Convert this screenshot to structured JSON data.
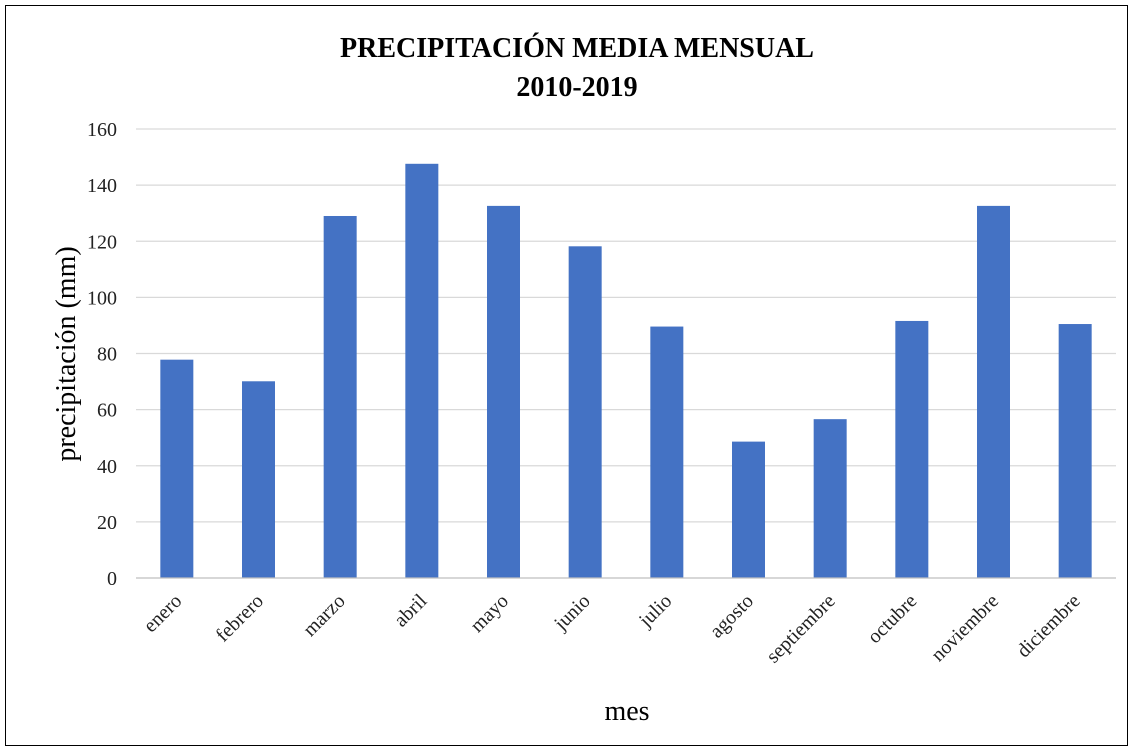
{
  "chart_data": {
    "type": "bar",
    "title": "PRECIPITACIÓN  MEDIA MENSUAL",
    "subtitle": "2010-2019",
    "xlabel": "mes",
    "ylabel": "precipitación  (mm)",
    "ylim": [
      0,
      160
    ],
    "yticks": [
      "0",
      "20",
      "40",
      "60",
      "80",
      "100",
      "120",
      "140",
      "160"
    ],
    "grid": true,
    "categories": [
      "enero",
      "febrero",
      "marzo",
      "abril",
      "mayo",
      "junio",
      "julio",
      "agosto",
      "septiembre",
      "octubre",
      "noviembre",
      "diciembre"
    ],
    "values": [
      77.8,
      70.1,
      129.0,
      147.6,
      132.6,
      118.2,
      89.6,
      48.6,
      56.6,
      91.6,
      132.6,
      90.5
    ],
    "bar_color": "#4472C4",
    "grid_color": "#d9d9d9"
  }
}
